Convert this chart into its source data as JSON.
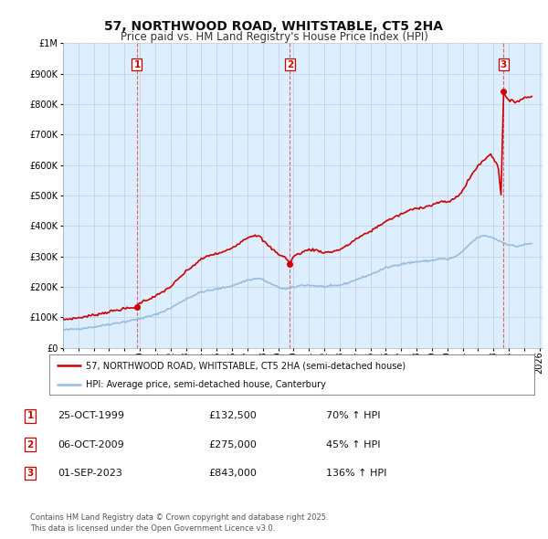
{
  "title": "57, NORTHWOOD ROAD, WHITSTABLE, CT5 2HA",
  "subtitle": "Price paid vs. HM Land Registry's House Price Index (HPI)",
  "legend_line1": "57, NORTHWOOD ROAD, WHITSTABLE, CT5 2HA (semi-detached house)",
  "legend_line2": "HPI: Average price, semi-detached house, Canterbury",
  "table_rows": [
    {
      "num": "1",
      "date": "25-OCT-1999",
      "price": "£132,500",
      "change": "70% ↑ HPI"
    },
    {
      "num": "2",
      "date": "06-OCT-2009",
      "price": "£275,000",
      "change": "45% ↑ HPI"
    },
    {
      "num": "3",
      "date": "01-SEP-2023",
      "price": "£843,000",
      "change": "136% ↑ HPI"
    }
  ],
  "footnote1": "Contains HM Land Registry data © Crown copyright and database right 2025.",
  "footnote2": "This data is licensed under the Open Government Licence v3.0.",
  "sale_color": "#cc0000",
  "hpi_color": "#99bbdd",
  "dashed_color": "#dd4444",
  "chart_bg": "#ddeeff",
  "ylim": [
    0,
    1000000
  ],
  "yticks": [
    0,
    100000,
    200000,
    300000,
    400000,
    500000,
    600000,
    700000,
    800000,
    900000,
    1000000
  ],
  "xlim_start": 1995.0,
  "xlim_end": 2026.2,
  "sale_dates": [
    1999.81,
    2009.76,
    2023.67
  ],
  "sale_prices": [
    132500,
    275000,
    843000
  ],
  "bg_color": "#ffffff",
  "grid_color": "#bbccdd",
  "label_color_number": "#cc0000",
  "xtick_years": [
    1995,
    1996,
    1997,
    1998,
    1999,
    2000,
    2001,
    2002,
    2003,
    2004,
    2005,
    2006,
    2007,
    2008,
    2009,
    2010,
    2011,
    2012,
    2013,
    2014,
    2015,
    2016,
    2017,
    2018,
    2019,
    2020,
    2021,
    2022,
    2023,
    2024,
    2025,
    2026
  ]
}
